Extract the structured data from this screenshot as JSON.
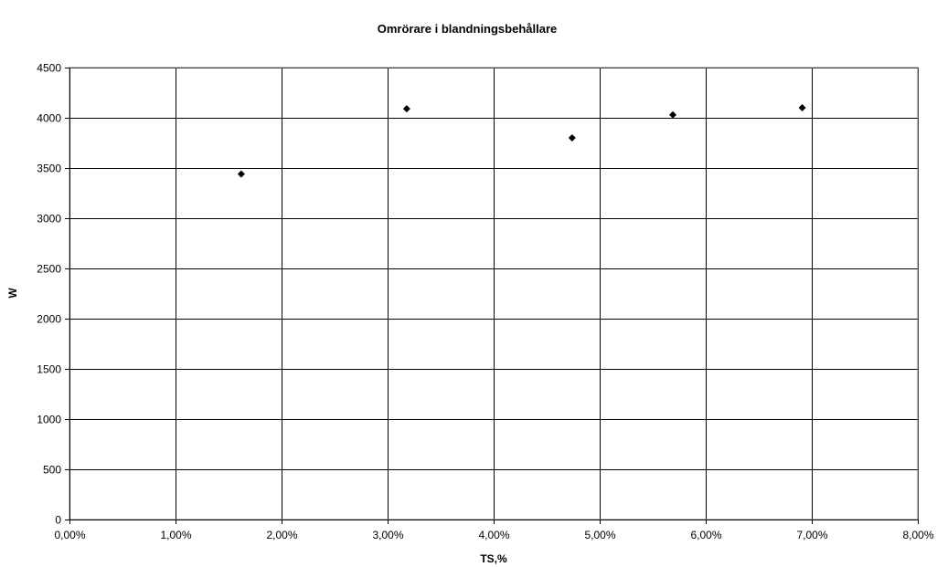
{
  "chart_data": {
    "type": "scatter",
    "title": "Omrörare i blandningsbehållare",
    "xlabel": "TS,%",
    "ylabel": "W",
    "xlim": [
      0,
      0.08
    ],
    "ylim": [
      0,
      4500
    ],
    "x_ticks": [
      0,
      0.01,
      0.02,
      0.03,
      0.04,
      0.05,
      0.06,
      0.07,
      0.08
    ],
    "x_tick_labels": [
      "0,00%",
      "1,00%",
      "2,00%",
      "3,00%",
      "4,00%",
      "5,00%",
      "6,00%",
      "7,00%",
      "8,00%"
    ],
    "y_ticks": [
      0,
      500,
      1000,
      1500,
      2000,
      2500,
      3000,
      3500,
      4000,
      4500
    ],
    "y_tick_labels": [
      "0",
      "500",
      "1000",
      "1500",
      "2000",
      "2500",
      "3000",
      "3500",
      "4000",
      "4500"
    ],
    "grid": true,
    "legend": "none",
    "marker_shape": "diamond",
    "colors": {
      "marker": "#000000",
      "grid": "#000000",
      "frame": "#808080",
      "background": "#ffffff"
    },
    "series": [
      {
        "x": [
          0.0162,
          0.0318,
          0.0474,
          0.0569,
          0.0691
        ],
        "y": [
          3440,
          4090,
          3800,
          4030,
          4100
        ]
      }
    ]
  }
}
